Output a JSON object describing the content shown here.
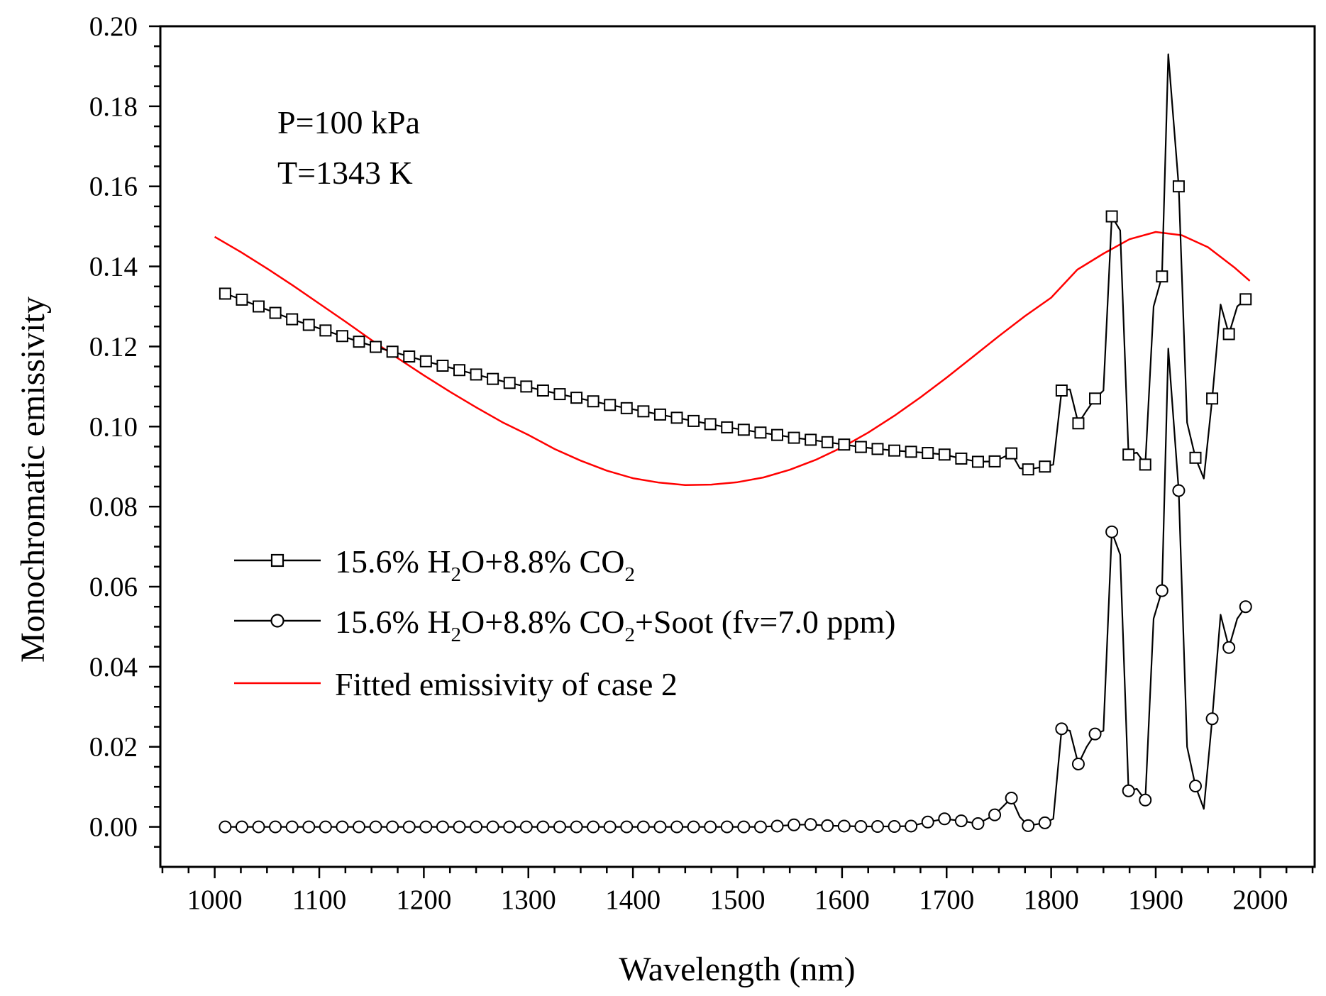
{
  "chart_data": {
    "type": "line",
    "title": "",
    "xlabel": "Wavelength (nm)",
    "ylabel": "Monochromatic emissivity",
    "xlim": [
      948,
      2052
    ],
    "ylim": [
      -0.01,
      0.2
    ],
    "xticks": [
      1000,
      1100,
      1200,
      1300,
      1400,
      1500,
      1600,
      1700,
      1800,
      1900,
      2000
    ],
    "yticks": [
      0.0,
      0.02,
      0.04,
      0.06,
      0.08,
      0.1,
      0.12,
      0.14,
      0.16,
      0.18,
      0.2
    ],
    "xtick_labels": [
      "1000",
      "1100",
      "1200",
      "1300",
      "1400",
      "1500",
      "1600",
      "1700",
      "1800",
      "1900",
      "2000"
    ],
    "ytick_labels": [
      "0.00",
      "0.02",
      "0.04",
      "0.06",
      "0.08",
      "0.10",
      "0.12",
      "0.14",
      "0.16",
      "0.18",
      "0.20"
    ],
    "annotations": [
      "P=100 kPa",
      "T=1343 K"
    ],
    "legend": {
      "position": "lower-left",
      "entries": [
        {
          "pre": "15.6% H",
          "sub1": "2",
          "mid": "O+8.8% CO",
          "sub2": "2",
          "post": ""
        },
        {
          "pre": "15.6% H",
          "sub1": "2",
          "mid": "O+8.8% CO",
          "sub2": "2",
          "post": "+Soot (fv=7.0 ppm)"
        },
        {
          "pre": "Fitted emissivity of case 2",
          "sub1": "",
          "mid": "",
          "sub2": "",
          "post": ""
        }
      ]
    },
    "series": [
      {
        "name": "15.6% H2O+8.8% CO2",
        "marker": "square",
        "color": "#000000",
        "x": [
          1010,
          1026,
          1042,
          1058,
          1074,
          1090,
          1106,
          1122,
          1138,
          1154,
          1170,
          1186,
          1202,
          1218,
          1234,
          1250,
          1266,
          1282,
          1298,
          1314,
          1330,
          1346,
          1362,
          1378,
          1394,
          1410,
          1426,
          1442,
          1458,
          1474,
          1490,
          1506,
          1522,
          1538,
          1554,
          1570,
          1586,
          1602,
          1618,
          1634,
          1650,
          1666,
          1682,
          1698,
          1714,
          1730,
          1746,
          1762,
          1778,
          1794,
          1810,
          1826,
          1842,
          1858,
          1874,
          1890,
          1906,
          1922,
          1938,
          1954,
          1970,
          1986
        ],
        "y": [
          0.1332,
          0.1317,
          0.13,
          0.1284,
          0.1268,
          0.1254,
          0.124,
          0.1226,
          0.1212,
          0.1199,
          0.1187,
          0.1175,
          0.1163,
          0.1152,
          0.1141,
          0.113,
          0.1119,
          0.1109,
          0.11,
          0.109,
          0.1081,
          0.1072,
          0.1063,
          0.1054,
          0.1046,
          0.1038,
          0.103,
          0.1022,
          0.1014,
          0.1006,
          0.0998,
          0.0992,
          0.0985,
          0.0979,
          0.0972,
          0.0967,
          0.0961,
          0.0955,
          0.0949,
          0.0944,
          0.094,
          0.0937,
          0.0934,
          0.093,
          0.092,
          0.0912,
          0.0913,
          0.0933,
          0.0893,
          0.09,
          0.109,
          0.1008,
          0.107,
          0.1525,
          0.093,
          0.0905,
          0.1375,
          0.16,
          0.0922,
          0.107,
          0.1231,
          0.1318
        ],
        "line_x": [
          1010,
          1026,
          1042,
          1058,
          1074,
          1090,
          1106,
          1122,
          1138,
          1154,
          1170,
          1186,
          1202,
          1218,
          1234,
          1250,
          1266,
          1282,
          1298,
          1314,
          1330,
          1346,
          1362,
          1378,
          1394,
          1410,
          1426,
          1442,
          1458,
          1474,
          1490,
          1506,
          1522,
          1538,
          1554,
          1570,
          1586,
          1602,
          1618,
          1634,
          1650,
          1666,
          1682,
          1698,
          1714,
          1730,
          1746,
          1762,
          1770,
          1778,
          1794,
          1802,
          1810,
          1818,
          1826,
          1834,
          1842,
          1850,
          1858,
          1866,
          1874,
          1882,
          1890,
          1898,
          1906,
          1912,
          1922,
          1930,
          1938,
          1946,
          1954,
          1962,
          1970,
          1978,
          1986
        ],
        "line_y": [
          0.1332,
          0.1317,
          0.13,
          0.1284,
          0.1268,
          0.1254,
          0.124,
          0.1226,
          0.1212,
          0.1199,
          0.1187,
          0.1175,
          0.1163,
          0.1152,
          0.1141,
          0.113,
          0.1119,
          0.1109,
          0.11,
          0.109,
          0.1081,
          0.1072,
          0.1063,
          0.1054,
          0.1046,
          0.1038,
          0.103,
          0.1022,
          0.1014,
          0.1006,
          0.0998,
          0.0992,
          0.0985,
          0.0979,
          0.0972,
          0.0967,
          0.0961,
          0.0955,
          0.0949,
          0.0944,
          0.094,
          0.0937,
          0.0934,
          0.093,
          0.092,
          0.0912,
          0.0913,
          0.0933,
          0.0896,
          0.0893,
          0.09,
          0.0905,
          0.109,
          0.1093,
          0.1008,
          0.104,
          0.107,
          0.109,
          0.1525,
          0.149,
          0.093,
          0.0935,
          0.0905,
          0.13,
          0.1375,
          0.193,
          0.16,
          0.101,
          0.0922,
          0.087,
          0.107,
          0.1305,
          0.1231,
          0.13,
          0.1318
        ]
      },
      {
        "name": "15.6% H2O+8.8% CO2+Soot (fv=7.0 ppm)",
        "marker": "circle",
        "color": "#000000",
        "x": [
          1010,
          1026,
          1042,
          1058,
          1074,
          1090,
          1106,
          1122,
          1138,
          1154,
          1170,
          1186,
          1202,
          1218,
          1234,
          1250,
          1266,
          1282,
          1298,
          1314,
          1330,
          1346,
          1362,
          1378,
          1394,
          1410,
          1426,
          1442,
          1458,
          1474,
          1490,
          1506,
          1522,
          1538,
          1554,
          1570,
          1586,
          1602,
          1618,
          1634,
          1650,
          1666,
          1682,
          1698,
          1714,
          1730,
          1746,
          1762,
          1778,
          1794,
          1810,
          1826,
          1842,
          1858,
          1874,
          1890,
          1906,
          1922,
          1938,
          1954,
          1970,
          1986
        ],
        "y": [
          0,
          0,
          0,
          0,
          0,
          0,
          0,
          0,
          0,
          0,
          0,
          0,
          0,
          0,
          0,
          0,
          0,
          0,
          0,
          0,
          0,
          0,
          0,
          0,
          0,
          0,
          0,
          0,
          0,
          0,
          0,
          0,
          0,
          0.0002,
          0.0005,
          0.0006,
          0.0003,
          0.0002,
          0.0001,
          0.0001,
          0.0001,
          0.0002,
          0.0012,
          0.002,
          0.0015,
          0.0008,
          0.003,
          0.0072,
          0.0003,
          0.001,
          0.0245,
          0.0157,
          0.0232,
          0.0737,
          0.009,
          0.0067,
          0.059,
          0.084,
          0.0102,
          0.027,
          0.0448,
          0.055
        ],
        "line_x": [
          1010,
          1026,
          1042,
          1058,
          1074,
          1090,
          1106,
          1122,
          1138,
          1154,
          1170,
          1186,
          1202,
          1218,
          1234,
          1250,
          1266,
          1282,
          1298,
          1314,
          1330,
          1346,
          1362,
          1378,
          1394,
          1410,
          1426,
          1442,
          1458,
          1474,
          1490,
          1506,
          1522,
          1538,
          1554,
          1570,
          1586,
          1602,
          1618,
          1634,
          1650,
          1666,
          1682,
          1698,
          1714,
          1730,
          1746,
          1762,
          1770,
          1778,
          1794,
          1802,
          1810,
          1818,
          1826,
          1834,
          1842,
          1850,
          1858,
          1866,
          1874,
          1882,
          1890,
          1898,
          1906,
          1912,
          1922,
          1930,
          1938,
          1946,
          1954,
          1962,
          1970,
          1978,
          1986
        ],
        "line_y": [
          0,
          0,
          0,
          0,
          0,
          0,
          0,
          0,
          0,
          0,
          0,
          0,
          0,
          0,
          0,
          0,
          0,
          0,
          0,
          0,
          0,
          0,
          0,
          0,
          0,
          0,
          0,
          0,
          0,
          0,
          0,
          0,
          0,
          0.0002,
          0.0005,
          0.0006,
          0.0003,
          0.0002,
          0.0001,
          0.0001,
          0.0001,
          0.0002,
          0.0012,
          0.002,
          0.0015,
          0.0008,
          0.003,
          0.0072,
          0.0025,
          0.0003,
          0.001,
          0.002,
          0.0245,
          0.024,
          0.0157,
          0.02,
          0.0232,
          0.024,
          0.0737,
          0.068,
          0.009,
          0.0095,
          0.0067,
          0.052,
          0.059,
          0.1195,
          0.084,
          0.02,
          0.0102,
          0.0045,
          0.027,
          0.053,
          0.0448,
          0.052,
          0.055
        ]
      },
      {
        "name": "Fitted emissivity of case 2",
        "marker": "none",
        "color": "#ff0000",
        "x": [
          1000,
          1025,
          1050,
          1075,
          1100,
          1125,
          1150,
          1175,
          1200,
          1225,
          1250,
          1275,
          1300,
          1325,
          1350,
          1375,
          1400,
          1425,
          1450,
          1475,
          1500,
          1525,
          1550,
          1575,
          1600,
          1625,
          1650,
          1675,
          1700,
          1725,
          1750,
          1775,
          1800,
          1825,
          1850,
          1875,
          1900,
          1925,
          1950,
          1975,
          1990
        ],
        "y": [
          0.1474,
          0.1436,
          0.1395,
          0.1352,
          0.1307,
          0.1262,
          0.1216,
          0.1171,
          0.1128,
          0.1087,
          0.1048,
          0.1011,
          0.0979,
          0.0944,
          0.0915,
          0.089,
          0.0871,
          0.086,
          0.0854,
          0.0855,
          0.0861,
          0.0873,
          0.0892,
          0.0917,
          0.0948,
          0.0985,
          0.1027,
          0.1073,
          0.1122,
          0.1174,
          0.1226,
          0.1276,
          0.1322,
          0.1392,
          0.1432,
          0.1468,
          0.1486,
          0.1478,
          0.1448,
          0.1398,
          0.1364
        ]
      }
    ]
  }
}
